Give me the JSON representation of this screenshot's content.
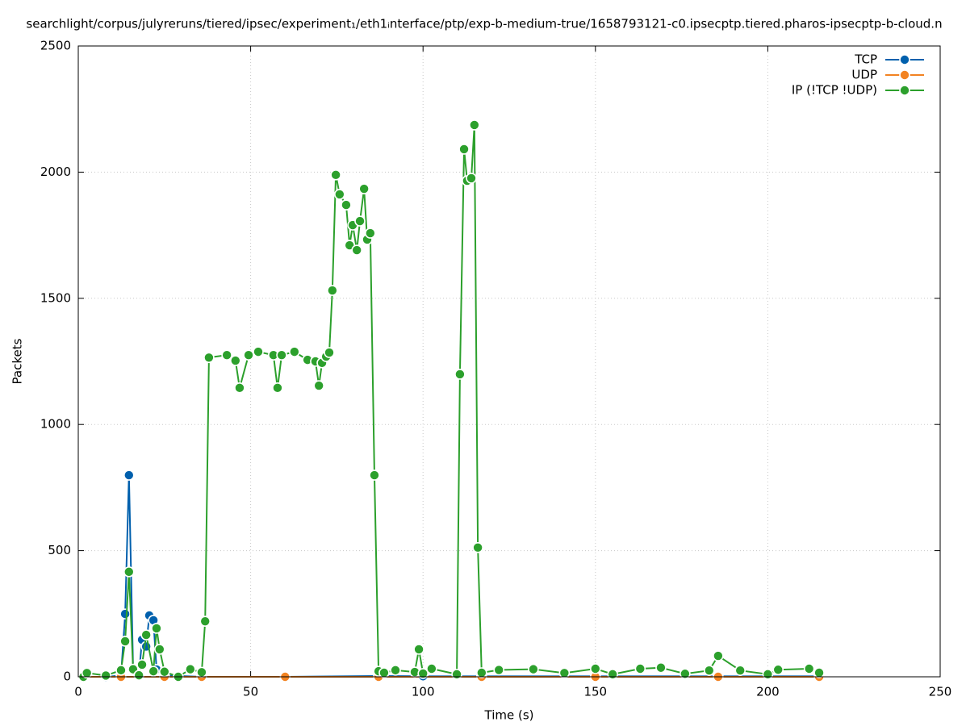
{
  "chart_data": {
    "type": "line",
    "title": "searchlight/corpus/julyreruns/tiered/ipsec/experiment₁/eth1ᵢnterface/ptp/exp-b-medium-true/1658793121-c0.ipsecptp.tiered.pharos-ipsecptp-b-cloud.n",
    "xlabel": "Time (s)",
    "ylabel": "Packets",
    "xlim": [
      0,
      250
    ],
    "ylim": [
      0,
      2500
    ],
    "xticks": [
      0,
      50,
      100,
      150,
      200,
      250
    ],
    "yticks": [
      0,
      500,
      1000,
      1500,
      2000,
      2500
    ],
    "grid": true,
    "legend": "top-right",
    "series": [
      {
        "name": "TCP",
        "color": "#0060ad",
        "x": [
          1.5,
          8,
          12.4,
          13.6,
          14.7,
          15.9,
          17.6,
          18.5,
          19.7,
          20.6,
          21.8,
          22.7,
          25,
          35.8,
          60,
          87.1,
          100,
          117,
          150,
          185.6,
          214.9
        ],
        "values": [
          0,
          0,
          5,
          249,
          799,
          32,
          10,
          147,
          120,
          243,
          224,
          29,
          5,
          0,
          0,
          3,
          2,
          2,
          2,
          2,
          2
        ]
      },
      {
        "name": "UDP",
        "color": "#f28322",
        "x": [
          1.5,
          12.4,
          25,
          35.8,
          60,
          87.1,
          117,
          150,
          185.6,
          214.9
        ],
        "values": [
          0,
          0,
          0,
          0,
          0,
          0,
          0,
          0,
          0,
          0
        ]
      },
      {
        "name": "IP (!TCP  !UDP)",
        "color": "#2ca02c",
        "x": [
          1.5,
          2.5,
          8,
          12.4,
          13.6,
          14.7,
          15.9,
          17.6,
          18.5,
          19.7,
          21.8,
          22.7,
          23.6,
          25,
          29,
          32.5,
          35.8,
          36.8,
          37.9,
          43.1,
          45.6,
          46.8,
          49.4,
          52.2,
          56.6,
          57.8,
          59,
          62.7,
          66.5,
          68.8,
          69.8,
          70.7,
          71.9,
          72.8,
          73.7,
          74.7,
          75.8,
          77.7,
          78.7,
          79.6,
          80.8,
          81.7,
          82.9,
          83.8,
          84.7,
          85.9,
          87.1,
          88.7,
          92,
          97.6,
          98.8,
          100,
          102.5,
          109.8,
          110.7,
          111.9,
          112.8,
          114,
          114.9,
          115.9,
          117,
          122,
          132,
          141,
          150,
          155,
          163,
          169,
          176,
          183,
          185.6,
          192,
          200,
          203,
          212,
          214.9
        ],
        "values": [
          0,
          15,
          5,
          26,
          141,
          416,
          30,
          6,
          48,
          166,
          22,
          192,
          109,
          20,
          0,
          30,
          18,
          220,
          1265,
          1275,
          1253,
          1145,
          1275,
          1288,
          1275,
          1145,
          1275,
          1288,
          1256,
          1250,
          1154,
          1244,
          1269,
          1285,
          1531,
          1989,
          1912,
          1870,
          1710,
          1790,
          1691,
          1806,
          1934,
          1733,
          1758,
          799,
          22,
          16,
          26,
          19,
          109,
          13,
          32,
          10,
          1199,
          2091,
          1966,
          1976,
          2187,
          512,
          16,
          27,
          30,
          15,
          32,
          10,
          32,
          36,
          12,
          25,
          83,
          25,
          10,
          28,
          32,
          16
        ]
      }
    ]
  }
}
